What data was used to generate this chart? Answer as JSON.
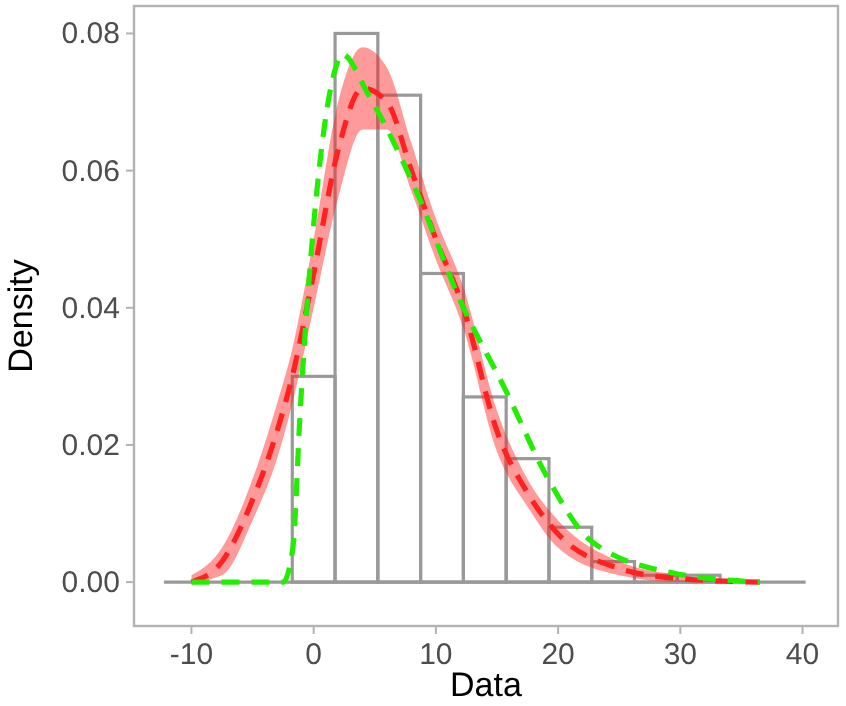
{
  "chart_data": {
    "type": "histogram",
    "xlabel": "Data",
    "ylabel": "Density",
    "xlim": [
      -14.7,
      42.9
    ],
    "ylim": [
      -0.0064,
      0.084
    ],
    "xticks": [
      -10,
      0,
      10,
      20,
      30,
      40
    ],
    "yticks": [
      {
        "value": 0,
        "label": "0.00"
      },
      {
        "value": 0.02,
        "label": "0.02"
      },
      {
        "value": 0.04,
        "label": "0.04"
      },
      {
        "value": 0.06,
        "label": "0.06"
      },
      {
        "value": 0.08,
        "label": "0.08"
      }
    ],
    "series": [
      {
        "color": "#999999",
        "bins": [
          -12.25,
          -8.75,
          -5.25,
          -1.75,
          1.75,
          5.25,
          8.75,
          12.25,
          15.75,
          19.25,
          22.75,
          26.25,
          29.75,
          33.25,
          36.75,
          40.25
        ],
        "values": [
          0,
          0,
          0,
          0.03,
          0.08,
          0.071,
          0.045,
          0.027,
          0.018,
          0.008,
          0.003,
          0.001,
          0.001,
          0,
          0
        ]
      },
      {
        "type": "line",
        "color": "#ff2020",
        "line_style": "dashed",
        "x": [
          -10,
          -7.5,
          -5,
          -3,
          -1.75,
          0,
          2,
          4,
          6,
          8,
          10,
          12.25,
          15,
          17.5,
          20,
          25,
          30,
          36.5
        ],
        "values": [
          0,
          0.003,
          0.012,
          0.022,
          0.03,
          0.045,
          0.063,
          0.072,
          0.07,
          0.06,
          0.05,
          0.04,
          0.022,
          0.013,
          0.007,
          0.002,
          0.0005,
          0
        ],
        "lower": [
          0,
          0.001,
          0.009,
          0.018,
          0.026,
          0.04,
          0.056,
          0.066,
          0.066,
          0.057,
          0.047,
          0.037,
          0.019,
          0.011,
          0.005,
          0.001,
          0,
          0
        ],
        "upper": [
          0.001,
          0.005,
          0.015,
          0.026,
          0.034,
          0.05,
          0.07,
          0.078,
          0.075,
          0.064,
          0.053,
          0.043,
          0.025,
          0.015,
          0.009,
          0.003,
          0.001,
          0
        ]
      },
      {
        "type": "line",
        "color": "#22ee00",
        "line_style": "dashed",
        "x": [
          -10,
          -2.5,
          -1.7,
          -1.1,
          0.5,
          1.8,
          2.3,
          4.5,
          8.4,
          12,
          15.7,
          19.2,
          22.7,
          29.5,
          36.5
        ],
        "values": [
          0,
          0,
          0.005,
          0.025,
          0.061,
          0.075,
          0.077,
          0.071,
          0.057,
          0.041,
          0.028,
          0.015,
          0.006,
          0.0013,
          0
        ]
      }
    ]
  }
}
